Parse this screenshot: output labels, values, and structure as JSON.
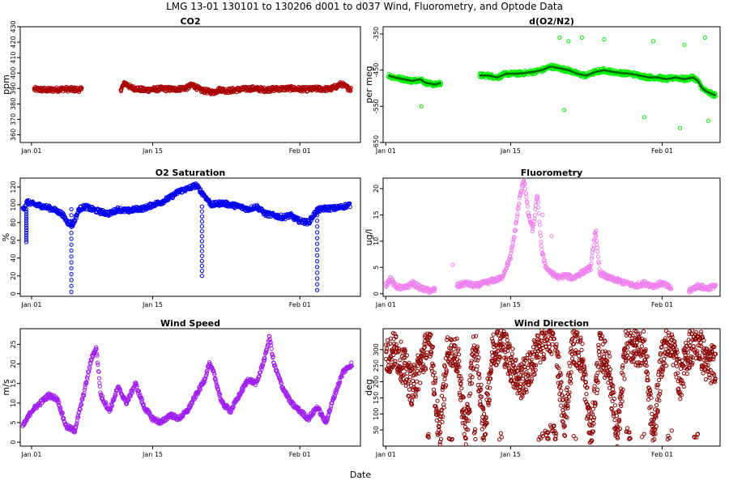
{
  "figure": {
    "title": "LMG   13-01    130101 to 130206    d001 to d037   Wind, Fluorometry, and Optode Data",
    "xlabel": "Date"
  },
  "chart_data": [
    {
      "id": "co2",
      "type": "scatter",
      "title": "CO2",
      "ylabel": "ppm",
      "color": "#aa0000",
      "ylim": [
        355,
        430
      ],
      "yticks": [
        360,
        370,
        380,
        390,
        400,
        410,
        420,
        430
      ],
      "xlim": [
        -1.3,
        38
      ],
      "xticks": [
        {
          "label": "Jan 01",
          "day": 0
        },
        {
          "label": "Jan 15",
          "day": 14
        },
        {
          "label": "Feb 01",
          "day": 31
        }
      ],
      "series": [
        {
          "segments": [
            {
              "x": [
                0.3,
                2.0,
                3.5,
                5.8
              ],
              "y": [
                389.5,
                389.0,
                389.6,
                389.2
              ]
            },
            {
              "x": [
                10.3,
                10.8,
                11.5,
                13.0,
                15.0,
                16.5,
                18.0,
                18.6,
                19.5,
                21.0,
                21.8,
                22.5,
                24.0,
                25.5,
                27.0,
                28.5,
                30.0,
                31.5,
                33.0,
                34.5,
                35.3,
                35.8,
                36.3,
                36.9
              ],
              "y": [
                389.5,
                393.5,
                390.5,
                389.0,
                389.8,
                389.5,
                390.5,
                392.5,
                389.0,
                387.5,
                389.5,
                388.5,
                389.3,
                390.0,
                389.2,
                389.8,
                390.0,
                389.4,
                389.8,
                389.6,
                391.5,
                393.0,
                391.0,
                389.5
              ]
            }
          ]
        }
      ]
    },
    {
      "id": "o2n2",
      "type": "scatter",
      "title": "d(O2/N2)",
      "ylabel": "per meg",
      "color": "#00ee00",
      "ylim": [
        -650,
        -330
      ],
      "yticks": [
        -650,
        -550,
        -450,
        -350
      ],
      "xlim": [
        -0.3,
        37.5
      ],
      "xticks": [
        {
          "label": "Jan 01",
          "day": 0
        },
        {
          "label": "Jan 15",
          "day": 14
        },
        {
          "label": "Feb 01",
          "day": 31
        }
      ],
      "series": [
        {
          "segments": [
            {
              "x": [
                0.3,
                1.0,
                2.0,
                3.0,
                3.8,
                4.5,
                5.5,
                6.2
              ],
              "y": [
                -465,
                -470,
                -475,
                -480,
                -475,
                -485,
                -490,
                -485
              ]
            },
            {
              "x": [
                10.5,
                11.5,
                12.5,
                13.5,
                14.5,
                15.5,
                16.5,
                17.5,
                18.5,
                19.5,
                20.5,
                21.5,
                22.5,
                23.5,
                24.5,
                25.5,
                26.5,
                27.5,
                28.5,
                29.5,
                30.5,
                31.5,
                32.5,
                33.5,
                34.5,
                35.0,
                35.5,
                36.0,
                36.5,
                37.0
              ],
              "y": [
                -465,
                -465,
                -470,
                -460,
                -460,
                -458,
                -455,
                -450,
                -440,
                -445,
                -450,
                -460,
                -465,
                -455,
                -450,
                -455,
                -458,
                -460,
                -465,
                -470,
                -470,
                -475,
                -470,
                -475,
                -470,
                -480,
                -500,
                -510,
                -515,
                -520
              ]
            }
          ]
        }
      ],
      "spikes": [
        {
          "x": 19.5,
          "y": -360
        },
        {
          "x": 20.5,
          "y": -370
        },
        {
          "x": 22,
          "y": -360
        },
        {
          "x": 24.5,
          "y": -365
        },
        {
          "x": 30,
          "y": -370
        },
        {
          "x": 33.5,
          "y": -380
        },
        {
          "x": 35.8,
          "y": -360
        },
        {
          "x": 36.2,
          "y": -590
        },
        {
          "x": 20,
          "y": -560
        },
        {
          "x": 29,
          "y": -580
        },
        {
          "x": 33,
          "y": -610
        },
        {
          "x": 4,
          "y": -550
        }
      ]
    },
    {
      "id": "o2sat",
      "type": "scatter",
      "title": "O2 Saturation",
      "ylabel": "%",
      "color": "#0000ee",
      "ylim": [
        -3,
        130
      ],
      "yticks": [
        0,
        20,
        40,
        60,
        80,
        100,
        120
      ],
      "xlim": [
        -1.3,
        38
      ],
      "xticks": [
        {
          "label": "Jan 01",
          "day": 0
        },
        {
          "label": "Jan 15",
          "day": 14
        },
        {
          "label": "Feb 01",
          "day": 31
        }
      ],
      "series": [
        {
          "segments": [
            {
              "x": [
                -1.0,
                -0.5,
                0.5,
                1.5,
                2.5,
                3.5,
                4.2,
                4.8,
                5.5,
                6.2,
                7.0,
                8.0,
                9.0,
                10.0,
                11.0,
                12.0,
                13.0,
                14.0,
                15.0,
                16.0,
                17.0,
                18.0,
                19.0,
                20.0,
                20.8,
                22.0,
                23.0,
                24.0,
                25.0,
                26.0,
                27.0,
                28.0,
                29.0,
                30.0,
                30.5,
                31.0,
                32.0,
                33.0,
                34.0,
                35.0,
                36.0,
                36.8
              ],
              "y": [
                95,
                103,
                100,
                98,
                95,
                90,
                80,
                78,
                95,
                98,
                95,
                92,
                90,
                95,
                93,
                95,
                96,
                100,
                103,
                108,
                115,
                118,
                122,
                110,
                100,
                102,
                100,
                98,
                95,
                98,
                90,
                88,
                86,
                88,
                84,
                82,
                80,
                94,
                96,
                96,
                98,
                100
              ]
            }
          ]
        }
      ],
      "dips": [
        {
          "x": 4.6,
          "yFrom": 2,
          "yTo": 95
        },
        {
          "x": 19.7,
          "yFrom": 20,
          "yTo": 98
        },
        {
          "x": 33.0,
          "yFrom": 4,
          "yTo": 95
        },
        {
          "x": -0.6,
          "yFrom": 58,
          "yTo": 95
        }
      ]
    },
    {
      "id": "fluoro",
      "type": "scatter",
      "title": "Fluorometry",
      "ylabel": "ug/l",
      "color": "#ee82ee",
      "ylim": [
        -0.5,
        22
      ],
      "yticks": [
        0,
        5,
        10,
        15,
        20
      ],
      "xlim": [
        -0.3,
        37.5
      ],
      "xticks": [
        {
          "label": "Jan 01",
          "day": 0
        },
        {
          "label": "Jan 15",
          "day": 14
        },
        {
          "label": "Feb 01",
          "day": 31
        }
      ],
      "series": [
        {
          "segments": [
            {
              "x": [
                0.0,
                0.5,
                1.0,
                2.0,
                3.0,
                4.0,
                5.0,
                5.5
              ],
              "y": [
                1.5,
                3.0,
                1.5,
                1.0,
                2.0,
                1.0,
                0.5,
                0.8
              ]
            },
            {
              "x": [
                8.0,
                9.0,
                10.0,
                11.0,
                12.0,
                13.0,
                13.5,
                14.0,
                14.5,
                15.0,
                15.5,
                16.0,
                16.5,
                17.0,
                17.5,
                18.0,
                18.5,
                19.0,
                19.5,
                20.0,
                21.0,
                22.0,
                23.0,
                23.5,
                24.0,
                25.0,
                26.0,
                27.0,
                28.0,
                29.0,
                30.0,
                31.0,
                32.0
              ],
              "y": [
                1.5,
                2.0,
                1.5,
                2.0,
                2.5,
                3.0,
                5.0,
                7.0,
                12.0,
                18.0,
                22.0,
                15.0,
                12.0,
                19.0,
                8.0,
                5.0,
                4.0,
                3.5,
                3.0,
                3.5,
                3.0,
                4.0,
                5.0,
                12.0,
                4.0,
                3.0,
                2.5,
                2.0,
                1.5,
                2.0,
                1.5,
                2.0,
                1.0
              ]
            },
            {
              "x": [
                34.0,
                35.0,
                36.0,
                37.0
              ],
              "y": [
                0.5,
                1.5,
                1.0,
                1.5
              ]
            }
          ]
        }
      ],
      "spikes": [
        {
          "x": 17.6,
          "y": 15
        },
        {
          "x": 18.6,
          "y": 11
        },
        {
          "x": 7.5,
          "y": 5.5
        },
        {
          "x": 23.6,
          "y": 12
        }
      ]
    },
    {
      "id": "windspeed",
      "type": "scatter",
      "title": "Wind Speed",
      "ylabel": "m/s",
      "color": "#a020f0",
      "ylim": [
        -1,
        29
      ],
      "yticks": [
        0,
        5,
        10,
        15,
        20,
        25
      ],
      "xlim": [
        -1.3,
        38
      ],
      "xticks": [
        {
          "label": "Jan 01",
          "day": 0
        },
        {
          "label": "Jan 15",
          "day": 14
        },
        {
          "label": "Feb 01",
          "day": 31
        }
      ],
      "series": [
        {
          "segments": [
            {
              "x": [
                -1.0,
                0.0,
                1.0,
                2.0,
                3.0,
                4.0,
                5.0,
                6.0,
                7.0,
                7.5,
                8.0,
                9.0,
                10.0,
                11.0,
                12.0,
                13.0,
                14.0,
                15.0,
                16.0,
                17.0,
                18.0,
                19.0,
                20.0,
                20.5,
                21.0,
                22.0,
                23.0,
                24.0,
                25.0,
                26.0,
                27.0,
                27.5,
                28.0,
                29.0,
                30.0,
                31.0,
                32.0,
                33.0,
                34.0,
                35.0,
                36.0,
                37.0
              ],
              "y": [
                4,
                8,
                10,
                12,
                11,
                4,
                3,
                12,
                22,
                24,
                12,
                8,
                14,
                10,
                15,
                9,
                6,
                5,
                7,
                6,
                8,
                12,
                16,
                20,
                18,
                10,
                8,
                12,
                16,
                15,
                22,
                27,
                20,
                14,
                10,
                8,
                6,
                9,
                5,
                12,
                18,
                20
              ]
            }
          ]
        }
      ]
    },
    {
      "id": "winddir",
      "type": "scatter",
      "title": "Wind Direction",
      "ylabel": "deg",
      "color": "#8b0000",
      "ylim": [
        0,
        365
      ],
      "yticks": [
        50,
        100,
        150,
        200,
        250,
        300
      ],
      "xlim": [
        -0.3,
        37.5
      ],
      "xticks": [
        {
          "label": "Jan 01",
          "day": 0
        },
        {
          "label": "Jan 15",
          "day": 14
        },
        {
          "label": "Feb 01",
          "day": 31
        }
      ],
      "series": [
        {
          "segments": [
            {
              "x": [
                0.0,
                1.0,
                2.0,
                3.0,
                4.0,
                5.0,
                6.0,
                7.0,
                8.0,
                9.0,
                10.0,
                11.0,
                12.0,
                13.0,
                14.0,
                15.0,
                16.0,
                17.0,
                18.0,
                19.0,
                20.0,
                21.0,
                22.0,
                23.0,
                24.0,
                25.0,
                26.0,
                27.0,
                28.0,
                29.0,
                30.0,
                31.0,
                32.0,
                33.0,
                34.0,
                35.0,
                36.0,
                37.0
              ],
              "y": [
                270,
                300,
                250,
                180,
                260,
                340,
                20,
                320,
                280,
                30,
                350,
                40,
                300,
                330,
                260,
                200,
                230,
                300,
                340,
                350,
                60,
                320,
                280,
                30,
                300,
                250,
                20,
                340,
                300,
                320,
                30,
                280,
                340,
                200,
                300,
                330,
                250,
                260
              ]
            }
          ]
        }
      ]
    }
  ]
}
